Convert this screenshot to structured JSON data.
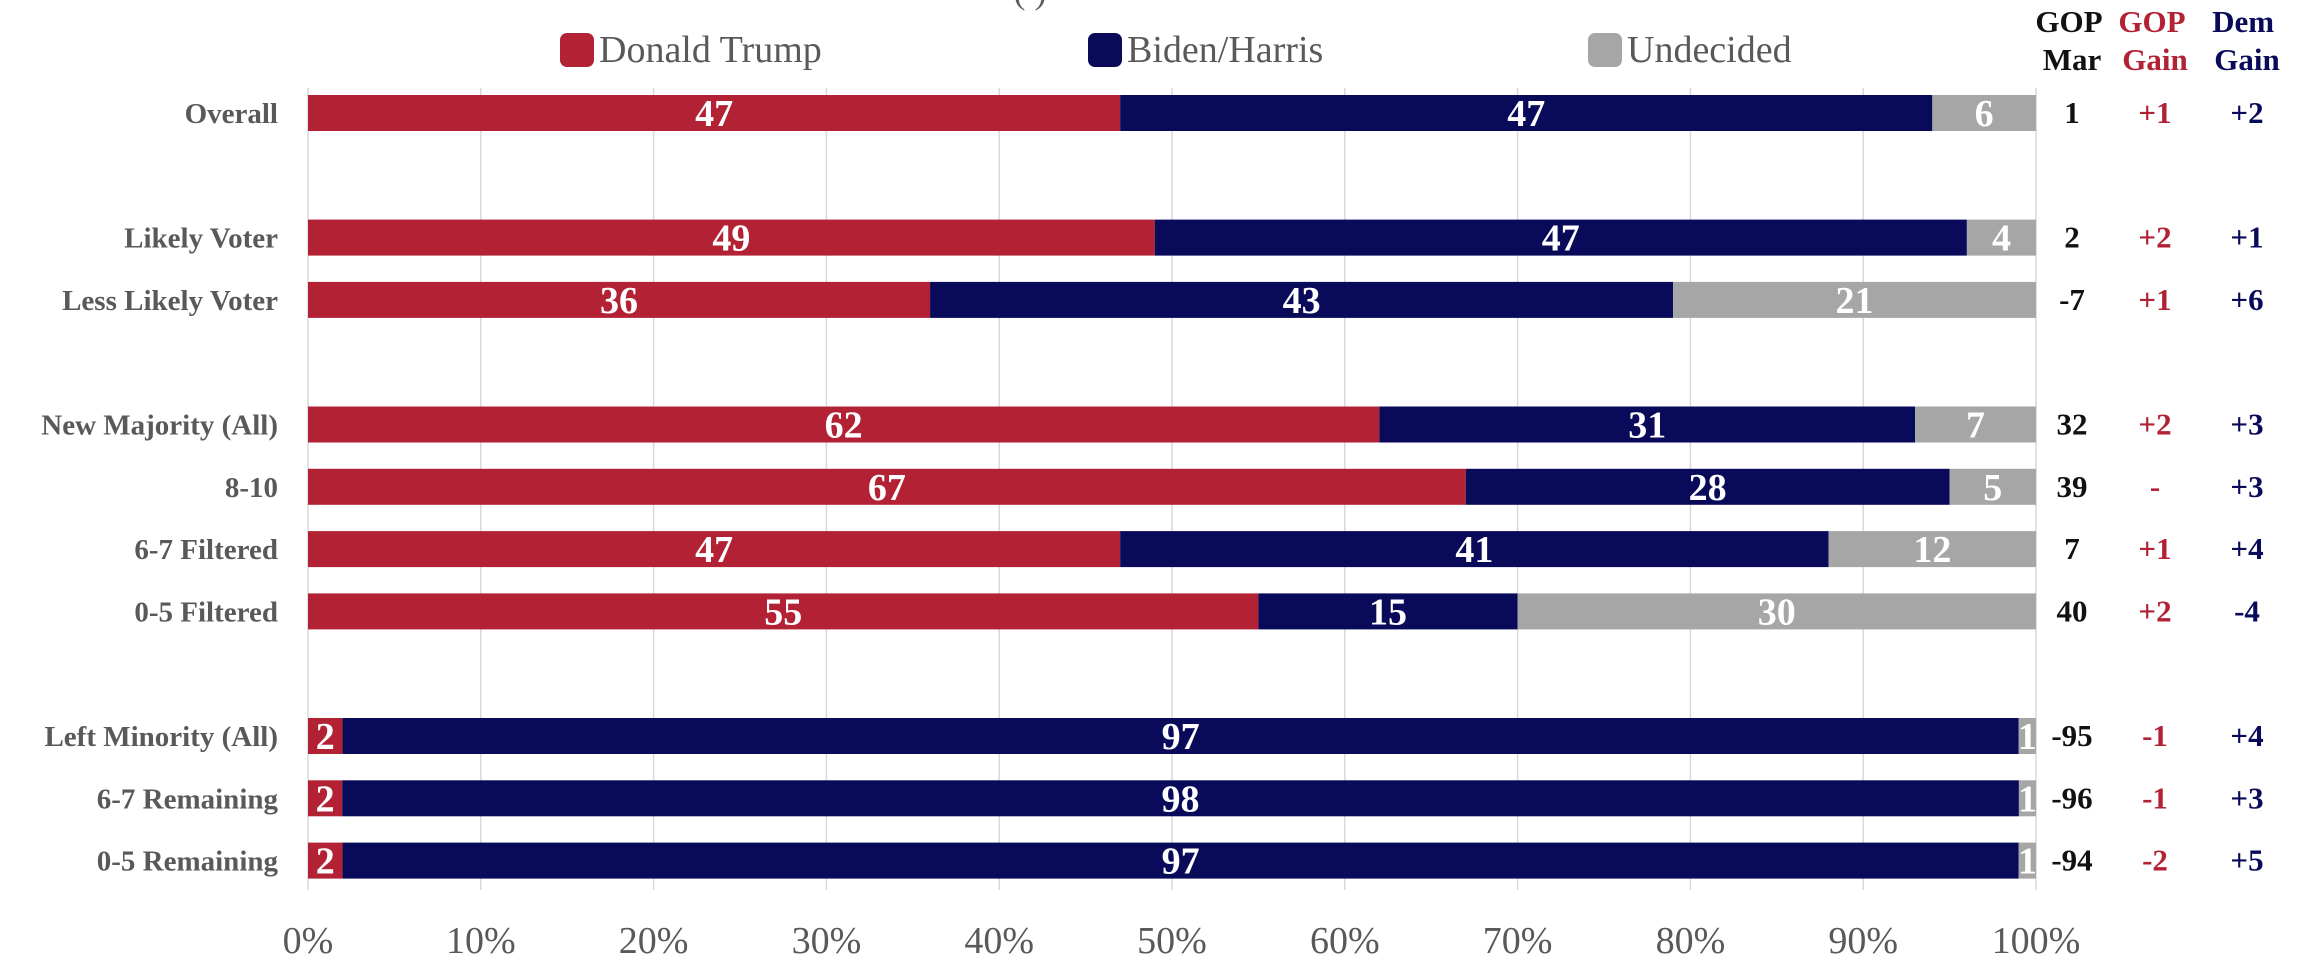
{
  "colors": {
    "trump": "#b22234",
    "biden": "#0a0a5a",
    "undecided": "#a6a6a6",
    "mar": "#111111",
    "gop_gain": "#b22234",
    "dem_gain": "#0a0a5a",
    "grid": "#d9d9d9",
    "axis_text": "#595959"
  },
  "title_fragment": "(                    )",
  "column_headers": {
    "mar": [
      "GOP",
      "Mar"
    ],
    "gop_gain": [
      "GOP",
      "Gain"
    ],
    "dem_gain": [
      "Dem",
      "Gain"
    ]
  },
  "chart_data": {
    "type": "bar",
    "orientation": "horizontal",
    "stacked": "percent",
    "title": "",
    "xlabel": "",
    "ylabel": "",
    "xlim": [
      0,
      100
    ],
    "x_ticks": [
      "0%",
      "10%",
      "20%",
      "30%",
      "40%",
      "50%",
      "60%",
      "70%",
      "80%",
      "90%",
      "100%"
    ],
    "grid": true,
    "legend_position": "top",
    "series": [
      {
        "name": "Donald Trump",
        "color": "#b22234"
      },
      {
        "name": "Biden/Harris",
        "color": "#0a0a5a"
      },
      {
        "name": "Undecided",
        "color": "#a6a6a6"
      }
    ],
    "groups": [
      [
        {
          "label": "Overall",
          "values": [
            47,
            47,
            6
          ],
          "mar": "1",
          "gop_gain": "+1",
          "dem_gain": "+2"
        }
      ],
      [
        {
          "label": "Likely Voter",
          "values": [
            49,
            47,
            4
          ],
          "mar": "2",
          "gop_gain": "+2",
          "dem_gain": "+1"
        },
        {
          "label": "Less Likely Voter",
          "values": [
            36,
            43,
            21
          ],
          "mar": "-7",
          "gop_gain": "+1",
          "dem_gain": "+6"
        }
      ],
      [
        {
          "label": "New Majority (All)",
          "values": [
            62,
            31,
            7
          ],
          "mar": "32",
          "gop_gain": "+2",
          "dem_gain": "+3"
        },
        {
          "label": "8-10",
          "values": [
            67,
            28,
            5
          ],
          "mar": "39",
          "gop_gain": "-",
          "dem_gain": "+3"
        },
        {
          "label": "6-7 Filtered",
          "values": [
            47,
            41,
            12
          ],
          "mar": "7",
          "gop_gain": "+1",
          "dem_gain": "+4"
        },
        {
          "label": "0-5 Filtered",
          "values": [
            55,
            15,
            30
          ],
          "mar": "40",
          "gop_gain": "+2",
          "dem_gain": "-4"
        }
      ],
      [
        {
          "label": "Left Minority (All)",
          "values": [
            2,
            97,
            1
          ],
          "mar": "-95",
          "gop_gain": "-1",
          "dem_gain": "+4"
        },
        {
          "label": "6-7 Remaining",
          "values": [
            2,
            98,
            1
          ],
          "mar": "-96",
          "gop_gain": "-1",
          "dem_gain": "+3"
        },
        {
          "label": "0-5 Remaining",
          "values": [
            2,
            97,
            1
          ],
          "mar": "-94",
          "gop_gain": "-2",
          "dem_gain": "+5"
        }
      ]
    ]
  }
}
